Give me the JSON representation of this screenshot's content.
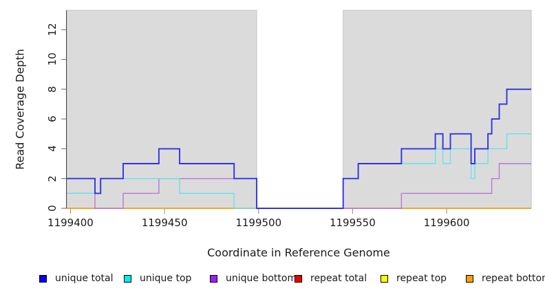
{
  "chart_data": {
    "type": "line",
    "subtype": "step",
    "title": "",
    "xlabel": "Coordinate in Reference Genome",
    "ylabel": "Read Coverage Depth",
    "xlim": [
      1199398,
      1199645
    ],
    "ylim": [
      0,
      13.3
    ],
    "x_ticks": [
      1199400,
      1199450,
      1199500,
      1199550,
      1199600
    ],
    "y_ticks": [
      0,
      2,
      4,
      6,
      8,
      10,
      12
    ],
    "grid": false,
    "legend_position": "bottom",
    "background_band_color": "#DBDBDB",
    "background_band_border": "#C2C2C2",
    "shaded_regions": [
      {
        "x0": 1199398,
        "x1": 1199499
      },
      {
        "x0": 1199545,
        "x1": 1199645
      }
    ],
    "series": [
      {
        "name": "unique total",
        "legend_color": "#0000EE",
        "line_color": "#3032E2",
        "line_width": 1.9,
        "steps": [
          [
            1199398,
            2
          ],
          [
            1199413,
            1
          ],
          [
            1199416,
            2
          ],
          [
            1199428,
            3
          ],
          [
            1199447,
            4
          ],
          [
            1199458,
            3
          ],
          [
            1199487,
            2
          ],
          [
            1199499,
            0
          ],
          [
            1199545,
            2
          ],
          [
            1199553,
            3
          ],
          [
            1199576,
            4
          ],
          [
            1199594,
            5
          ],
          [
            1199598,
            4
          ],
          [
            1199602,
            5
          ],
          [
            1199613,
            3
          ],
          [
            1199615,
            4
          ],
          [
            1199622,
            5
          ],
          [
            1199624,
            6
          ],
          [
            1199628,
            7
          ],
          [
            1199632,
            8
          ]
        ]
      },
      {
        "name": "unique top",
        "legend_color": "#00EEEE",
        "line_color": "#63E3EC",
        "line_width": 1.4,
        "steps": [
          [
            1199398,
            1
          ],
          [
            1199416,
            2
          ],
          [
            1199458,
            1
          ],
          [
            1199487,
            0
          ],
          [
            1199545,
            2
          ],
          [
            1199553,
            3
          ],
          [
            1199594,
            4
          ],
          [
            1199598,
            3
          ],
          [
            1199602,
            4
          ],
          [
            1199613,
            2
          ],
          [
            1199615,
            3
          ],
          [
            1199622,
            4
          ],
          [
            1199632,
            5
          ]
        ]
      },
      {
        "name": "unique bottom",
        "legend_color": "#A020F0",
        "line_color": "#B876D8",
        "line_width": 1.4,
        "steps": [
          [
            1199398,
            1
          ],
          [
            1199413,
            0
          ],
          [
            1199428,
            1
          ],
          [
            1199447,
            2
          ],
          [
            1199499,
            0
          ],
          [
            1199576,
            1
          ],
          [
            1199624,
            2
          ],
          [
            1199628,
            3
          ]
        ]
      },
      {
        "name": "repeat total",
        "legend_color": "#EE0000",
        "line_color": "#E03030",
        "line_width": 1.4,
        "steps": [
          [
            1199398,
            0
          ]
        ]
      },
      {
        "name": "repeat top",
        "legend_color": "#FFFF00",
        "line_color": "#F0F000",
        "line_width": 1.4,
        "steps": [
          [
            1199398,
            0
          ]
        ]
      },
      {
        "name": "repeat bottom",
        "legend_color": "#FFA000",
        "line_color": "#FF9E1B",
        "line_width": 1.4,
        "steps": [
          [
            1199398,
            0
          ]
        ]
      }
    ],
    "draw_order": [
      "repeat total",
      "repeat top",
      "repeat bottom",
      "unique bottom",
      "unique top",
      "unique total"
    ]
  }
}
